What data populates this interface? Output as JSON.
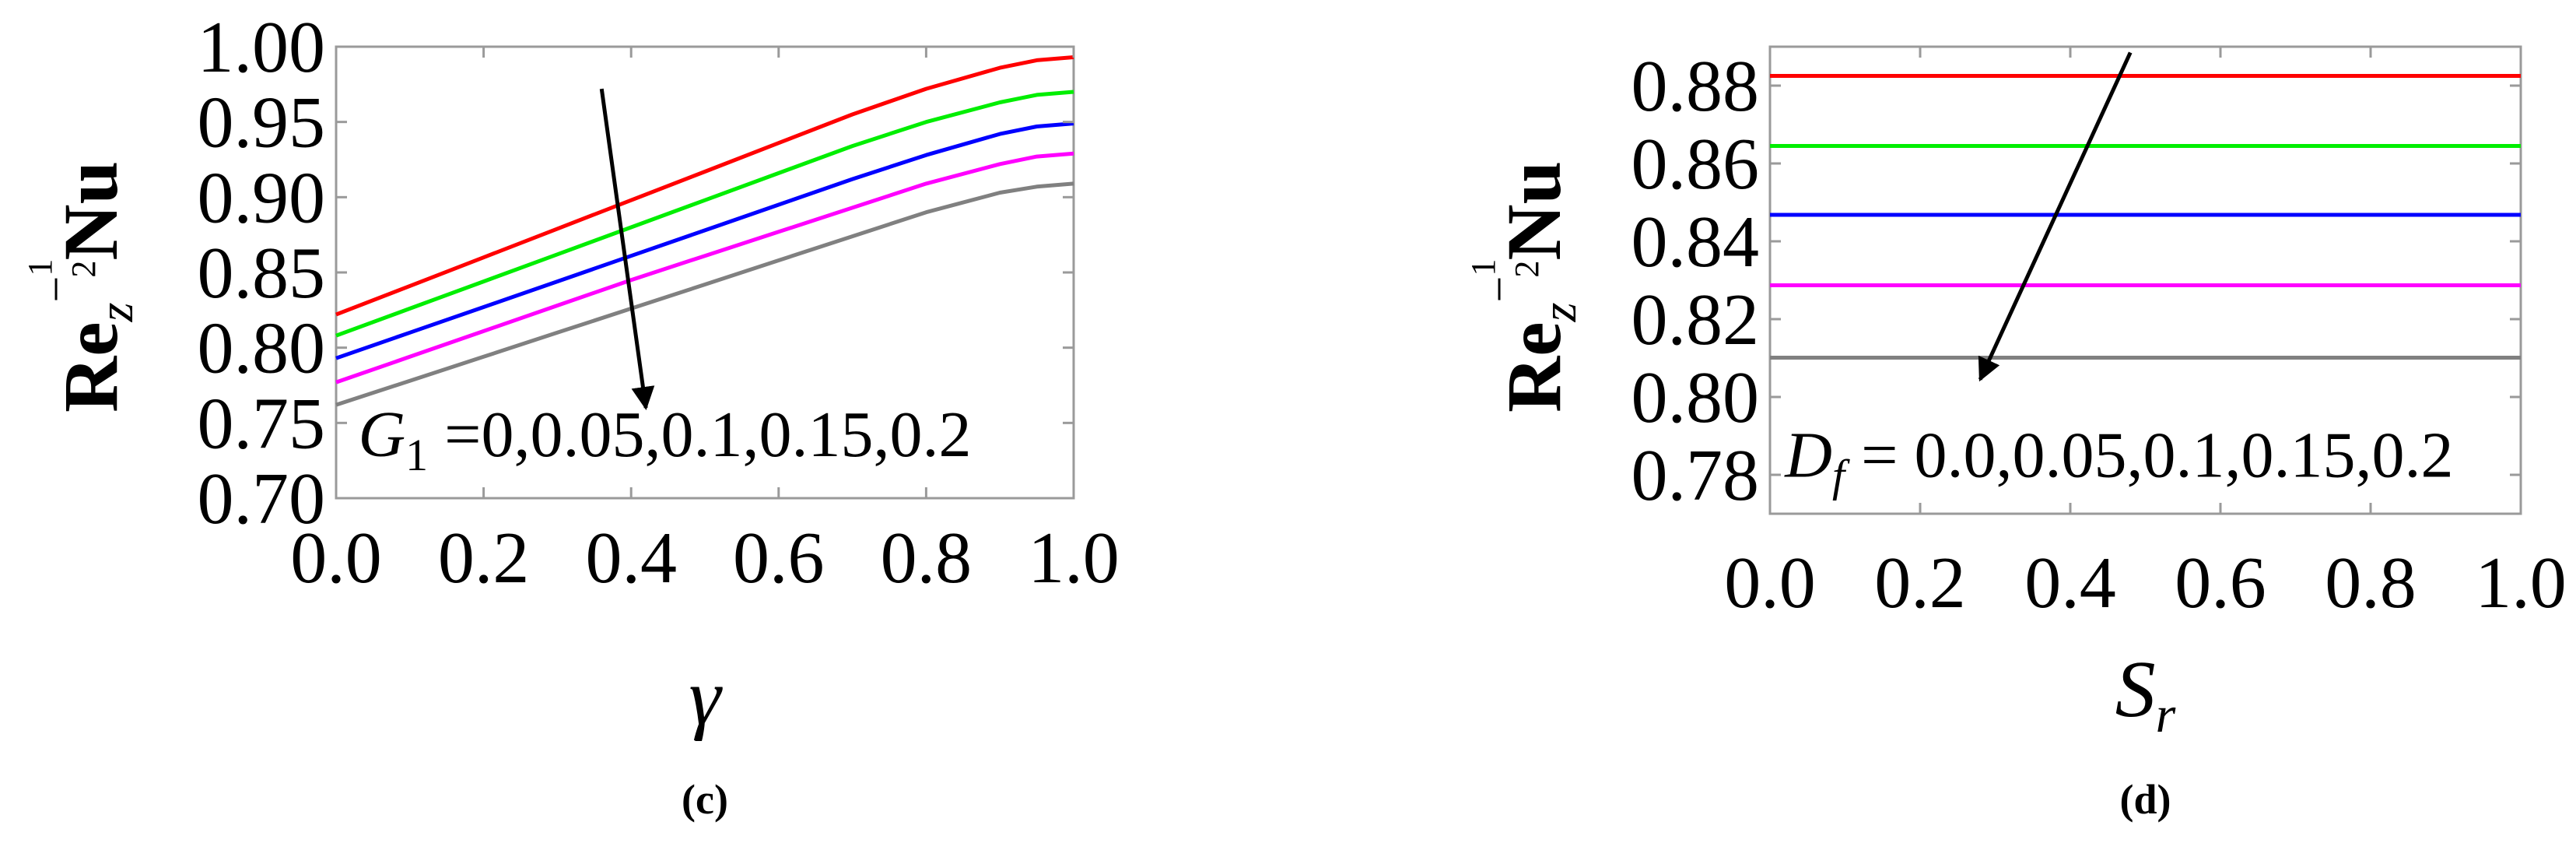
{
  "chart_data": [
    {
      "type": "line",
      "panel_label": "(c)",
      "xlabel": "γ",
      "ylabel": "Re_z^(-1/2) Nu",
      "xlim": [
        0,
        1
      ],
      "ylim": [
        0.7,
        1.0
      ],
      "xticks": [
        "0.0",
        "0.2",
        "0.4",
        "0.6",
        "0.8",
        "1.0"
      ],
      "yticks": [
        "0.70",
        "0.75",
        "0.80",
        "0.85",
        "0.90",
        "0.95",
        "1.00"
      ],
      "annotation": {
        "symbol": "G",
        "subscript": "1",
        "text": " =0,0.05,0.1,0.15,0.2"
      },
      "arrow": "downward, direction of increasing parameter",
      "x": [
        0.0,
        0.1,
        0.2,
        0.3,
        0.4,
        0.5,
        0.6,
        0.7,
        0.8,
        0.9,
        0.95,
        1.0
      ],
      "series": [
        {
          "color": "#ff0000",
          "values": [
            0.822,
            0.841,
            0.86,
            0.879,
            0.898,
            0.917,
            0.936,
            0.955,
            0.972,
            0.986,
            0.991,
            0.993
          ]
        },
        {
          "color": "#00ee00",
          "values": [
            0.808,
            0.826,
            0.844,
            0.862,
            0.88,
            0.898,
            0.916,
            0.934,
            0.95,
            0.963,
            0.968,
            0.97
          ]
        },
        {
          "color": "#0000ff",
          "values": [
            0.793,
            0.81,
            0.827,
            0.844,
            0.861,
            0.878,
            0.895,
            0.912,
            0.928,
            0.942,
            0.947,
            0.949
          ]
        },
        {
          "color": "#ff00ff",
          "values": [
            0.777,
            0.794,
            0.811,
            0.828,
            0.845,
            0.861,
            0.877,
            0.893,
            0.909,
            0.922,
            0.927,
            0.929
          ]
        },
        {
          "color": "#808080",
          "values": [
            0.762,
            0.778,
            0.794,
            0.81,
            0.826,
            0.842,
            0.858,
            0.874,
            0.89,
            0.903,
            0.907,
            0.909
          ]
        }
      ]
    },
    {
      "type": "line",
      "panel_label": "(d)",
      "xlabel": "S_r",
      "ylabel": "Re_z^(-1/2) Nu",
      "xlim": [
        0,
        1
      ],
      "ylim": [
        0.77,
        0.89
      ],
      "xticks": [
        "0.0",
        "0.2",
        "0.4",
        "0.6",
        "0.8",
        "1.0"
      ],
      "yticks": [
        "0.78",
        "0.80",
        "0.82",
        "0.84",
        "0.86",
        "0.88"
      ],
      "annotation": {
        "symbol": "D",
        "subscript": "f",
        "text": " = 0.0,0.05,0.1,0.15,0.2"
      },
      "arrow": "downward, direction of increasing parameter",
      "x": [
        0.0,
        1.0
      ],
      "series": [
        {
          "color": "#ff0000",
          "values": [
            0.8825,
            0.8825
          ]
        },
        {
          "color": "#00ee00",
          "values": [
            0.8645,
            0.8645
          ]
        },
        {
          "color": "#0000ff",
          "values": [
            0.8468,
            0.8468
          ]
        },
        {
          "color": "#ff00ff",
          "values": [
            0.8287,
            0.8287
          ]
        },
        {
          "color": "#808080",
          "values": [
            0.8101,
            0.8101
          ]
        }
      ]
    }
  ]
}
